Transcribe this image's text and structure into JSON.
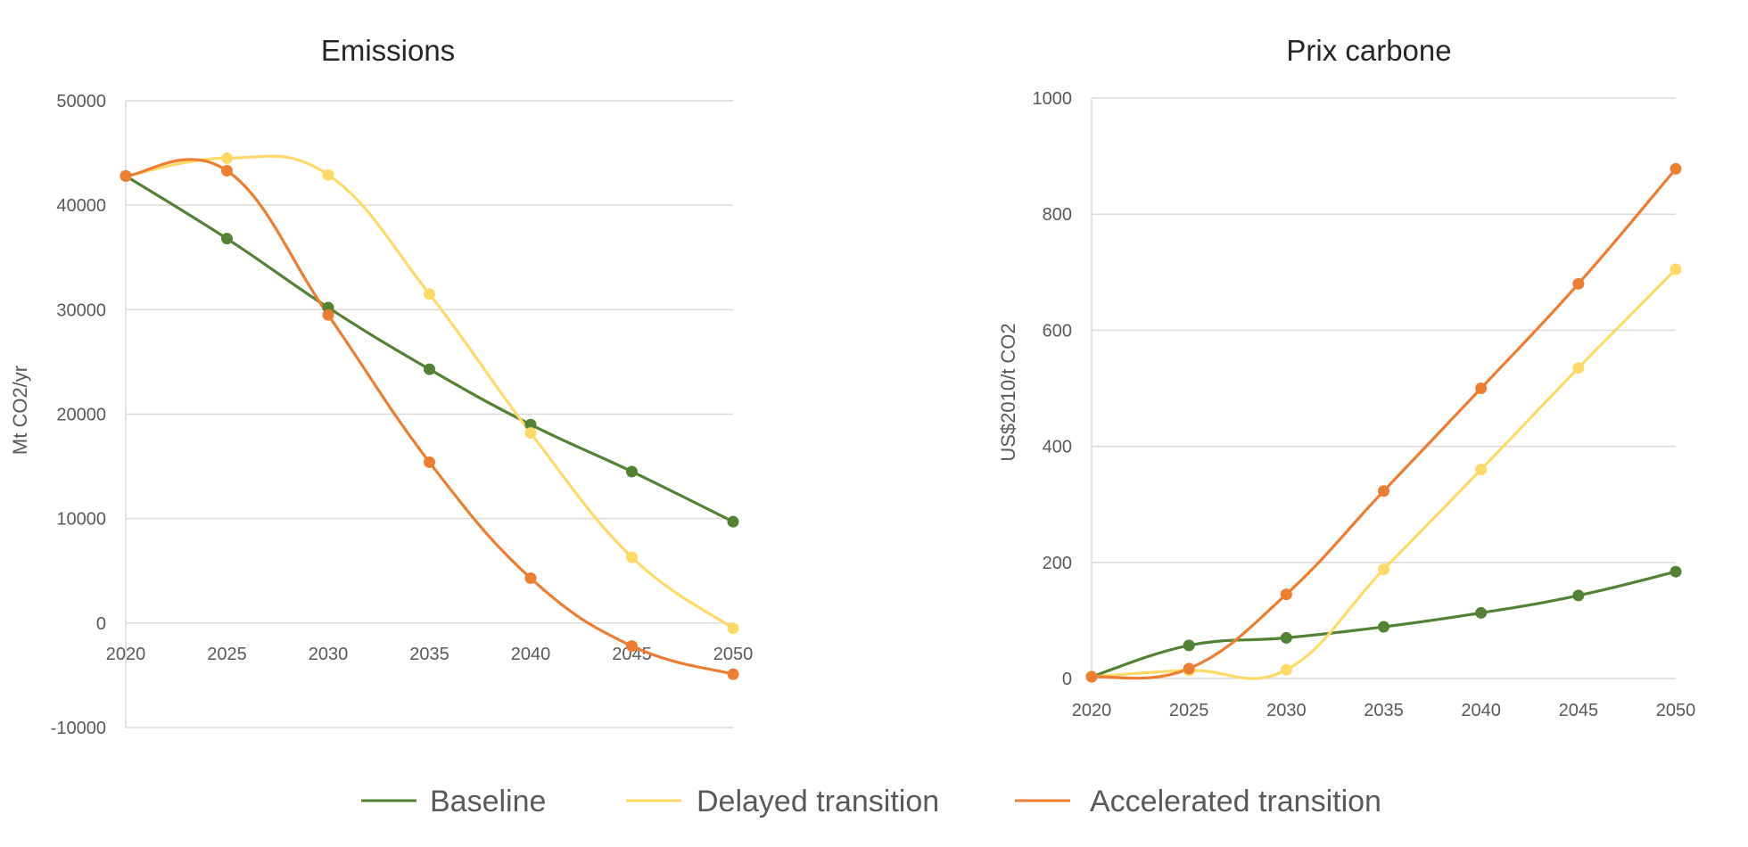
{
  "chart_data": [
    {
      "type": "line",
      "title": "Emissions",
      "xlabel": "",
      "ylabel": "Mt CO2/yr",
      "x": [
        2020,
        2025,
        2030,
        2035,
        2040,
        2045,
        2050
      ],
      "ylim": [
        -10000,
        50000
      ],
      "yticks": [
        50000,
        40000,
        30000,
        20000,
        10000,
        0,
        -10000
      ],
      "grid": true,
      "smooth": true,
      "series": [
        {
          "name": "Baseline",
          "color": "#548235",
          "values": [
            42800,
            36800,
            30200,
            24300,
            19000,
            14500,
            9700
          ]
        },
        {
          "name": "Delayed transition",
          "color": "#FFD966",
          "values": [
            42800,
            44500,
            42900,
            31500,
            18200,
            6300,
            -500
          ]
        },
        {
          "name": "Accelerated transition",
          "color": "#ED7D31",
          "values": [
            42800,
            43300,
            29500,
            15400,
            4300,
            -2200,
            -4900
          ]
        }
      ]
    },
    {
      "type": "line",
      "title": "Prix carbone",
      "xlabel": "",
      "ylabel": "US$2010/t CO2",
      "x": [
        2020,
        2025,
        2030,
        2035,
        2040,
        2045,
        2050
      ],
      "ylim": [
        0,
        1000
      ],
      "yticks": [
        1000,
        800,
        600,
        400,
        200,
        0
      ],
      "grid": true,
      "smooth": true,
      "series": [
        {
          "name": "Baseline",
          "color": "#548235",
          "values": [
            3,
            57,
            70,
            89,
            113,
            143,
            184
          ]
        },
        {
          "name": "Delayed transition",
          "color": "#FFD966",
          "values": [
            3,
            14,
            15,
            188,
            360,
            535,
            705
          ]
        },
        {
          "name": "Accelerated transition",
          "color": "#ED7D31",
          "values": [
            3,
            17,
            145,
            323,
            500,
            680,
            878
          ]
        }
      ]
    }
  ],
  "legend": {
    "placement": "bottom",
    "items": [
      {
        "label": "Baseline",
        "color": "#548235"
      },
      {
        "label": "Delayed transition",
        "color": "#FFD966"
      },
      {
        "label": "Accelerated transition",
        "color": "#ED7D31"
      }
    ]
  },
  "colors": {
    "grid": "#D9D9D9",
    "axis": "#D9D9D9",
    "text": "#595959",
    "title": "#262626"
  }
}
